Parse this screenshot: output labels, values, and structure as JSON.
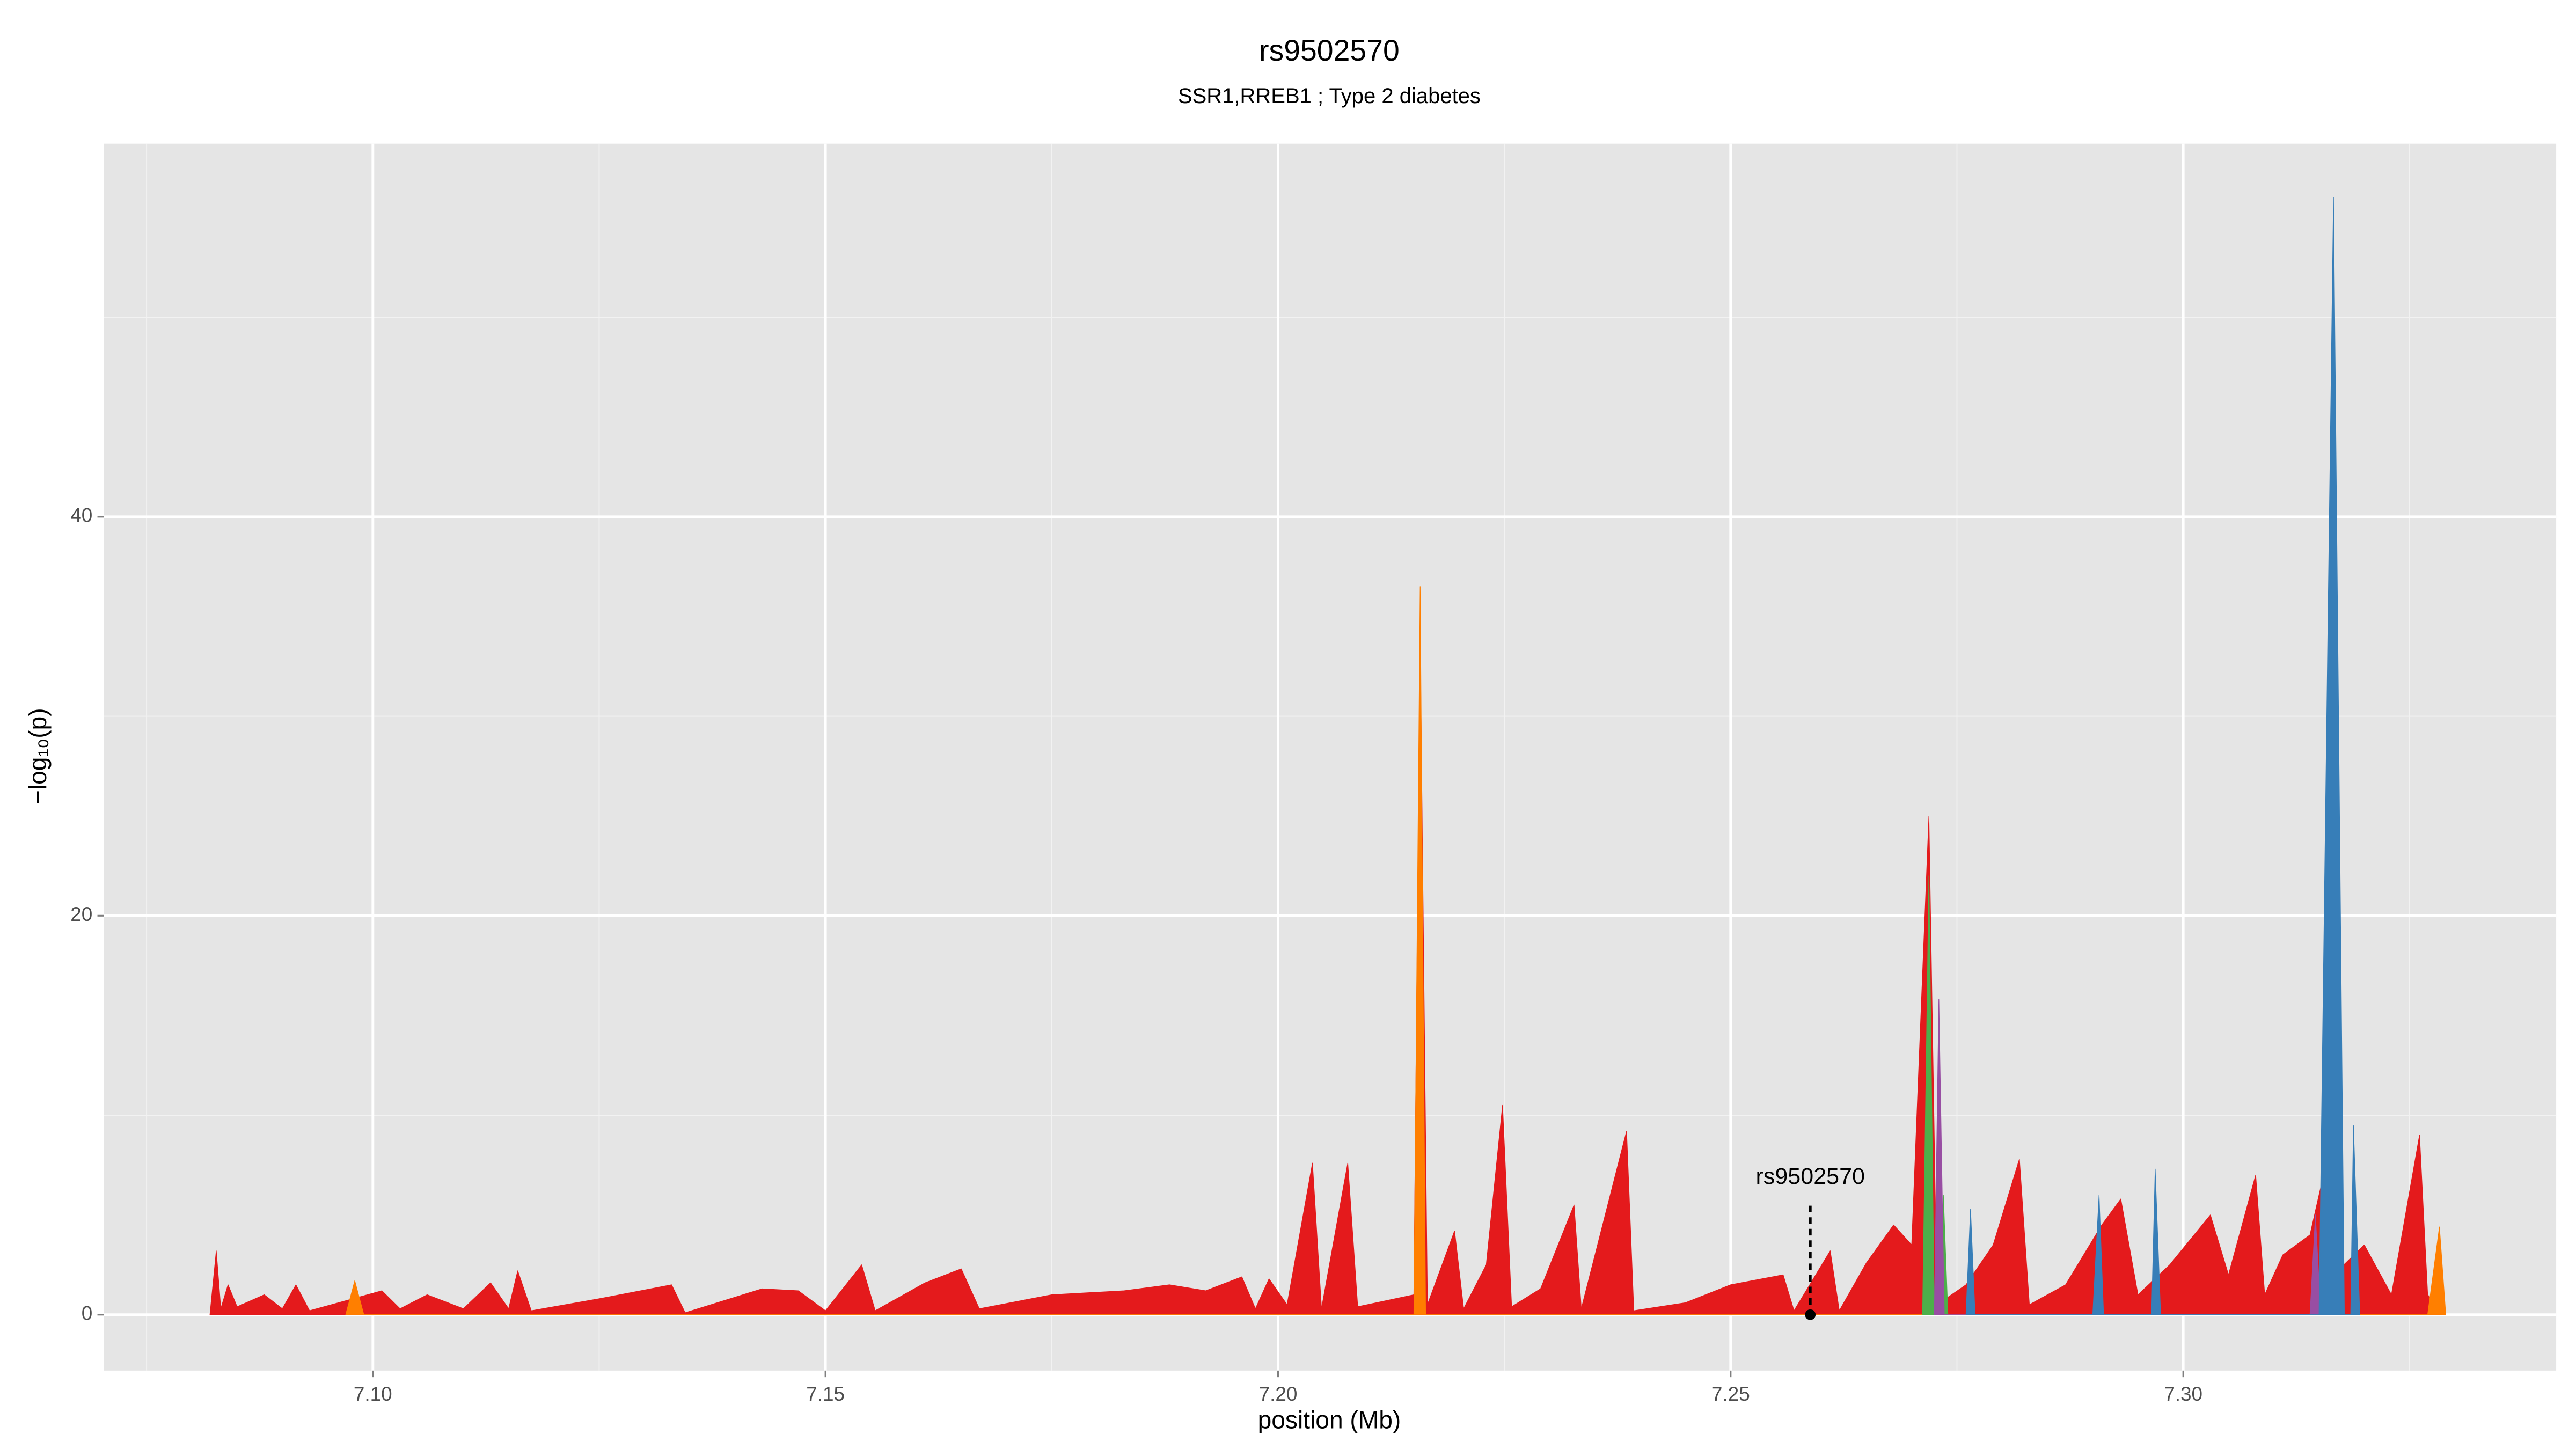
{
  "chart_data": {
    "type": "area",
    "title": "rs9502570",
    "subtitle": "SSR1,RREB1 ; Type 2 diabetes",
    "x_label": "position (Mb)",
    "y_label": "−log₁₀(p)",
    "xlim": [
      7.0703,
      7.3412
    ],
    "ylim": [
      -2.8,
      58.7
    ],
    "xticks": [
      {
        "value": 7.1,
        "label": "7.10"
      },
      {
        "value": 7.15,
        "label": "7.15"
      },
      {
        "value": 7.2,
        "label": "7.20"
      },
      {
        "value": 7.25,
        "label": "7.25"
      },
      {
        "value": 7.3,
        "label": "7.30"
      }
    ],
    "yticks": [
      0,
      20,
      40
    ],
    "x_minor_grid": [
      7.075,
      7.125,
      7.175,
      7.225,
      7.275,
      7.325
    ],
    "y_minor_grid": [
      10,
      30,
      50
    ],
    "grid": true,
    "series": [
      {
        "color": "#e41a1c",
        "x": [
          7.082,
          7.0827,
          7.0832,
          7.084,
          7.085,
          7.088,
          7.09,
          7.0915,
          7.093,
          7.101,
          7.103,
          7.106,
          7.11,
          7.113,
          7.115,
          7.116,
          7.1175,
          7.125,
          7.133,
          7.1345,
          7.143,
          7.147,
          7.15,
          7.154,
          7.1555,
          7.161,
          7.165,
          7.167,
          7.175,
          7.183,
          7.188,
          7.192,
          7.196,
          7.1975,
          7.199,
          7.201,
          7.2038,
          7.2048,
          7.2077,
          7.2088,
          7.215,
          7.2157,
          7.2165,
          7.2195,
          7.2205,
          7.223,
          7.2248,
          7.2258,
          7.229,
          7.2327,
          7.2335,
          7.2385,
          7.2393,
          7.245,
          7.25,
          7.2558,
          7.257,
          7.261,
          7.262,
          7.265,
          7.268,
          7.27,
          7.2719,
          7.2728,
          7.276,
          7.279,
          7.2819,
          7.283,
          7.287,
          7.291,
          7.2931,
          7.295,
          7.2985,
          7.303,
          7.305,
          7.308,
          7.309,
          7.311,
          7.314,
          7.3155,
          7.3166,
          7.32,
          7.323,
          7.3261,
          7.327,
          7.328,
          7.3283
        ],
        "values": [
          0,
          3.2,
          0.3,
          1.5,
          0.4,
          1.0,
          0.3,
          1.5,
          0.2,
          1.2,
          0.3,
          1.0,
          0.3,
          1.6,
          0.3,
          2.2,
          0.2,
          0.8,
          1.5,
          0.1,
          1.3,
          1.2,
          0.2,
          2.5,
          0.2,
          1.6,
          2.3,
          0.3,
          1.0,
          1.2,
          1.5,
          1.2,
          1.9,
          0.3,
          1.8,
          0.5,
          7.6,
          0.3,
          7.6,
          0.4,
          1.0,
          34,
          0.5,
          4.2,
          0.3,
          2.5,
          10.5,
          0.4,
          1.3,
          5.5,
          0.3,
          9.2,
          0.2,
          0.6,
          1.5,
          2.0,
          0.2,
          3.2,
          0.2,
          2.6,
          4.5,
          3.5,
          25,
          0.5,
          1.5,
          3.5,
          7.8,
          0.5,
          1.5,
          4.5,
          5.8,
          1.0,
          2.5,
          5.0,
          2.0,
          7.0,
          1.0,
          3.0,
          4.0,
          7.0,
          2,
          3.5,
          1.0,
          9.0,
          1.0,
          0.5,
          0
        ]
      },
      {
        "color": "#ff7f00",
        "x": [
          7.097,
          7.098,
          7.099,
          7.215,
          7.2157,
          7.2163,
          7.327,
          7.3283,
          7.329
        ],
        "values": [
          0,
          1.7,
          0,
          0,
          36.5,
          0,
          0,
          4.4,
          0
        ]
      },
      {
        "color": "#4daf4a",
        "x": [
          7.2712,
          7.2719,
          7.2725,
          7.273,
          7.2735,
          7.274
        ],
        "values": [
          0,
          22,
          0,
          0,
          6,
          0
        ]
      },
      {
        "color": "#984ea3",
        "x": [
          7.2725,
          7.273,
          7.2736,
          7.314,
          7.3146,
          7.3152
        ],
        "values": [
          0,
          15.8,
          0,
          0,
          5,
          0
        ]
      },
      {
        "color": "#377eb8",
        "x": [
          7.276,
          7.2765,
          7.277,
          7.29,
          7.2907,
          7.2912,
          7.2965,
          7.2969,
          7.2975,
          7.315,
          7.3166,
          7.3178,
          7.3185,
          7.3188,
          7.3195
        ],
        "values": [
          0,
          5.3,
          0,
          0,
          6,
          0,
          0,
          7.3,
          0,
          0,
          56,
          0,
          0,
          9.5,
          0
        ]
      }
    ],
    "annotation": {
      "label": "rs9502570",
      "x": 7.2588,
      "y": 0
    }
  }
}
